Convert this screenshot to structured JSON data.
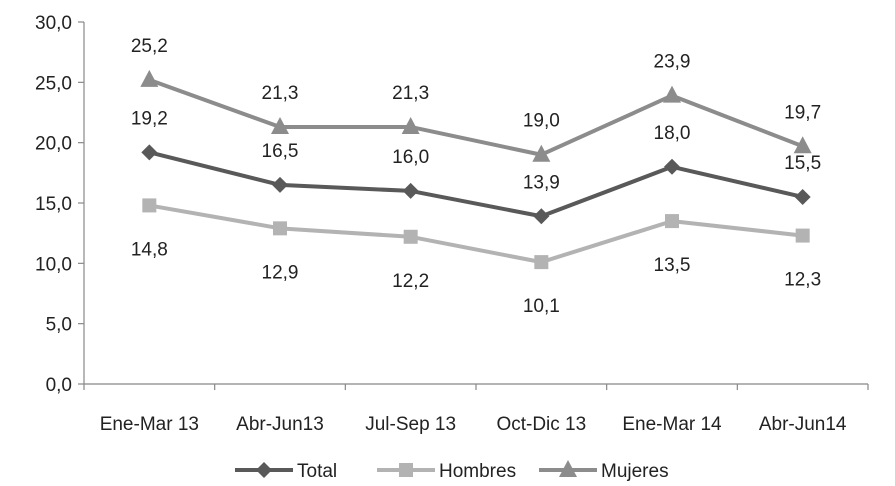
{
  "chart_data": {
    "type": "line",
    "title": "",
    "xlabel": "",
    "ylabel": "",
    "categories": [
      "Ene-Mar 13",
      "Abr-Jun13",
      "Jul-Sep 13",
      "Oct-Dic 13",
      "Ene-Mar 14",
      "Abr-Jun14"
    ],
    "ylim": [
      0,
      30
    ],
    "y_ticks": [
      "0,0",
      "5,0",
      "10,0",
      "15,0",
      "20,0",
      "25,0",
      "30,0"
    ],
    "grid": false,
    "legend_position": "bottom",
    "series": [
      {
        "name": "Total",
        "values": [
          19.2,
          16.5,
          16.0,
          13.9,
          18.0,
          15.5
        ],
        "labels": [
          "19,2",
          "16,5",
          "16,0",
          "13,9",
          "18,0",
          "15,5"
        ],
        "color": "#595959",
        "marker": "diamond"
      },
      {
        "name": "Hombres",
        "values": [
          14.8,
          12.9,
          12.2,
          10.1,
          13.5,
          12.3
        ],
        "labels": [
          "14,8",
          "12,9",
          "12,2",
          "10,1",
          "13,5",
          "12,3"
        ],
        "color": "#b3b3b3",
        "marker": "square"
      },
      {
        "name": "Mujeres",
        "values": [
          25.2,
          21.3,
          21.3,
          19.0,
          23.9,
          19.7
        ],
        "labels": [
          "25,2",
          "21,3",
          "21,3",
          "19,0",
          "23,9",
          "19,7"
        ],
        "color": "#8c8c8c",
        "marker": "triangle"
      }
    ]
  }
}
